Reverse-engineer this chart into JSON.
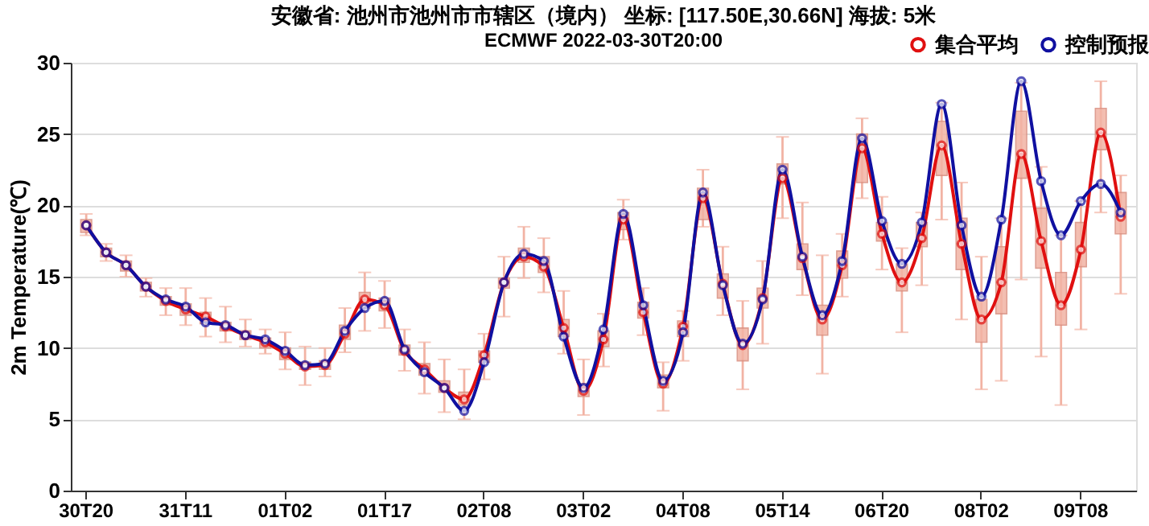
{
  "chart_data": {
    "type": "line",
    "title": "安徽省: 池州市池州市市辖区（境内） 坐标: [117.50E,30.66N] 海拔: 5米",
    "subtitle": "ECMWF 2022-03-30T20:00",
    "ylabel": "2m Temperature(℃)",
    "categories": [
      "30T20",
      null,
      null,
      null,
      null,
      "31T11",
      null,
      null,
      null,
      null,
      "01T02",
      null,
      null,
      null,
      null,
      "01T17",
      null,
      null,
      null,
      null,
      "02T08",
      null,
      null,
      null,
      null,
      "03T02",
      null,
      null,
      null,
      null,
      "04T08",
      null,
      null,
      null,
      null,
      "05T14",
      null,
      null,
      null,
      null,
      "06T20",
      null,
      null,
      null,
      null,
      "08T02",
      null,
      null,
      null,
      null,
      "09T08",
      null,
      null
    ],
    "ylim": [
      0,
      30
    ],
    "yticks": [
      0,
      5,
      10,
      15,
      20,
      25,
      30
    ],
    "grid": "y",
    "legend": "top right",
    "marker": "circle",
    "line_style": "solid",
    "series": [
      {
        "type": "box",
        "color": "#f2b3a4",
        "boxes": [
          {
            "low": 17.9,
            "q1": 18.1,
            "median": 18.6,
            "q3": 19.0,
            "high": 19.4
          },
          {
            "low": 16.1,
            "q1": 16.4,
            "median": 16.7,
            "q3": 17.0,
            "high": 17.3
          },
          {
            "low": 15.0,
            "q1": 15.4,
            "median": 15.8,
            "q3": 16.1,
            "high": 16.5
          },
          {
            "low": 13.6,
            "q1": 14.0,
            "median": 14.3,
            "q3": 14.6,
            "high": 14.9
          },
          {
            "low": 12.3,
            "q1": 13.0,
            "median": 13.3,
            "q3": 13.6,
            "high": 14.2
          },
          {
            "low": 11.6,
            "q1": 12.3,
            "median": 12.7,
            "q3": 13.1,
            "high": 14.2
          },
          {
            "low": 10.8,
            "q1": 11.7,
            "median": 12.2,
            "q3": 12.5,
            "high": 13.5
          },
          {
            "low": 10.4,
            "q1": 11.2,
            "median": 11.5,
            "q3": 11.8,
            "high": 12.9
          },
          {
            "low": 10.1,
            "q1": 10.6,
            "median": 10.9,
            "q3": 11.2,
            "high": 12.0
          },
          {
            "low": 9.6,
            "q1": 10.0,
            "median": 10.4,
            "q3": 10.7,
            "high": 11.3
          },
          {
            "low": 8.5,
            "q1": 9.2,
            "median": 9.6,
            "q3": 10.0,
            "high": 11.1
          },
          {
            "low": 7.4,
            "q1": 8.5,
            "median": 8.7,
            "q3": 9.0,
            "high": 10.1
          },
          {
            "low": 8.0,
            "q1": 8.5,
            "median": 8.8,
            "q3": 9.1,
            "high": 10.0
          },
          {
            "low": 9.7,
            "q1": 10.6,
            "median": 11.0,
            "q3": 11.6,
            "high": 12.8
          },
          {
            "low": 11.2,
            "q1": 12.8,
            "median": 13.4,
            "q3": 13.9,
            "high": 15.3
          },
          {
            "low": 11.4,
            "q1": 12.6,
            "median": 13.0,
            "q3": 13.5,
            "high": 14.7
          },
          {
            "low": 8.4,
            "q1": 9.5,
            "median": 9.8,
            "q3": 10.2,
            "high": 11.3
          },
          {
            "low": 6.8,
            "q1": 8.1,
            "median": 8.5,
            "q3": 8.9,
            "high": 10.4
          },
          {
            "low": 5.5,
            "q1": 6.9,
            "median": 7.2,
            "q3": 7.7,
            "high": 9.2
          },
          {
            "low": 5.0,
            "q1": 6.0,
            "median": 6.4,
            "q3": 6.9,
            "high": 8.5
          },
          {
            "low": 7.8,
            "q1": 9.0,
            "median": 9.5,
            "q3": 9.8,
            "high": 11.0
          },
          {
            "low": 12.2,
            "q1": 14.2,
            "median": 14.6,
            "q3": 14.9,
            "high": 16.4
          },
          {
            "low": 14.9,
            "q1": 16.0,
            "median": 16.4,
            "q3": 17.0,
            "high": 18.5
          },
          {
            "low": 13.9,
            "q1": 15.3,
            "median": 15.7,
            "q3": 16.4,
            "high": 17.7
          },
          {
            "low": 9.6,
            "q1": 10.8,
            "median": 11.4,
            "q3": 12.0,
            "high": 14.0
          },
          {
            "low": 5.3,
            "q1": 6.6,
            "median": 7.0,
            "q3": 7.5,
            "high": 9.2
          },
          {
            "low": 8.7,
            "q1": 10.1,
            "median": 10.6,
            "q3": 11.2,
            "high": 12.4
          },
          {
            "low": 17.6,
            "q1": 18.3,
            "median": 19.0,
            "q3": 19.5,
            "high": 20.4
          },
          {
            "low": 10.9,
            "q1": 12.1,
            "median": 12.5,
            "q3": 13.2,
            "high": 14.2
          },
          {
            "low": 5.6,
            "q1": 7.2,
            "median": 7.5,
            "q3": 8.1,
            "high": 9.0
          },
          {
            "low": 9.1,
            "q1": 10.8,
            "median": 11.5,
            "q3": 11.9,
            "high": 12.6
          },
          {
            "low": 18.5,
            "q1": 19.0,
            "median": 20.5,
            "q3": 21.2,
            "high": 22.5
          },
          {
            "low": 12.3,
            "q1": 13.5,
            "median": 14.5,
            "q3": 15.2,
            "high": 17.1
          },
          {
            "low": 7.1,
            "q1": 9.1,
            "median": 10.2,
            "q3": 11.4,
            "high": 13.3
          },
          {
            "low": 10.3,
            "q1": 12.8,
            "median": 13.5,
            "q3": 14.2,
            "high": 16.1
          },
          {
            "low": 19.1,
            "q1": 21.5,
            "median": 21.9,
            "q3": 22.9,
            "high": 24.8
          },
          {
            "low": 13.7,
            "q1": 15.5,
            "median": 16.3,
            "q3": 17.3,
            "high": 20.2
          },
          {
            "low": 8.2,
            "q1": 10.9,
            "median": 12.0,
            "q3": 13.0,
            "high": 16.5
          },
          {
            "low": 13.6,
            "q1": 14.9,
            "median": 15.8,
            "q3": 16.8,
            "high": 18.0
          },
          {
            "low": 20.5,
            "q1": 21.6,
            "median": 24.0,
            "q3": 25.0,
            "high": 26.1
          },
          {
            "low": 15.5,
            "q1": 17.5,
            "median": 18.0,
            "q3": 18.8,
            "high": 20.6
          },
          {
            "low": 11.1,
            "q1": 14.0,
            "median": 14.6,
            "q3": 15.9,
            "high": 17.0
          },
          {
            "low": 14.4,
            "q1": 17.1,
            "median": 17.7,
            "q3": 18.8,
            "high": 19.5
          },
          {
            "low": 19.0,
            "q1": 22.1,
            "median": 24.2,
            "q3": 25.9,
            "high": 27.2
          },
          {
            "low": 12.0,
            "q1": 15.5,
            "median": 17.3,
            "q3": 19.1,
            "high": 21.6
          },
          {
            "low": 7.1,
            "q1": 10.4,
            "median": 12.0,
            "q3": 13.4,
            "high": 16.4
          },
          {
            "low": 7.7,
            "q1": 12.4,
            "median": 14.6,
            "q3": 17.1,
            "high": 19.1
          },
          {
            "low": 14.8,
            "q1": 21.9,
            "median": 23.6,
            "q3": 26.6,
            "high": 28.6
          },
          {
            "low": 9.4,
            "q1": 15.6,
            "median": 17.5,
            "q3": 19.8,
            "high": 22.7
          },
          {
            "low": 6.0,
            "q1": 11.6,
            "median": 13.0,
            "q3": 15.3,
            "high": 17.9
          },
          {
            "low": 11.3,
            "q1": 15.7,
            "median": 16.9,
            "q3": 18.8,
            "high": 20.3
          },
          {
            "low": 19.5,
            "q1": 23.9,
            "median": 25.1,
            "q3": 26.8,
            "high": 28.7
          },
          {
            "low": 13.8,
            "q1": 18.0,
            "median": 19.2,
            "q3": 20.9,
            "high": 22.1
          }
        ]
      },
      {
        "name": "集合平均",
        "color": "#e01010",
        "values": [
          18.6,
          16.7,
          15.8,
          14.3,
          13.3,
          12.7,
          12.2,
          11.5,
          10.9,
          10.4,
          9.6,
          8.7,
          8.8,
          11.0,
          13.4,
          13.0,
          9.8,
          8.5,
          7.2,
          6.4,
          9.5,
          14.6,
          16.4,
          15.7,
          11.4,
          7.0,
          10.6,
          19.0,
          12.5,
          7.5,
          11.5,
          20.5,
          14.5,
          10.2,
          13.5,
          21.9,
          16.3,
          12.0,
          15.8,
          24.0,
          18.0,
          14.6,
          17.7,
          24.2,
          17.3,
          12.0,
          14.6,
          23.6,
          17.5,
          13.0,
          16.9,
          25.1,
          19.2
        ]
      },
      {
        "name": "控制预报",
        "color": "#1010a0",
        "values": [
          18.6,
          16.7,
          15.8,
          14.3,
          13.4,
          12.9,
          11.8,
          11.6,
          10.9,
          10.6,
          9.8,
          8.8,
          8.9,
          11.2,
          12.8,
          13.3,
          9.9,
          8.3,
          7.2,
          5.6,
          9.0,
          14.6,
          16.6,
          16.1,
          10.8,
          7.2,
          11.3,
          19.4,
          13.0,
          7.7,
          11.1,
          20.9,
          14.4,
          10.3,
          13.4,
          22.5,
          16.4,
          12.3,
          16.1,
          24.7,
          18.9,
          15.9,
          18.8,
          27.1,
          18.6,
          13.6,
          19.0,
          28.7,
          21.7,
          17.9,
          20.3,
          21.5,
          19.5
        ]
      }
    ]
  }
}
